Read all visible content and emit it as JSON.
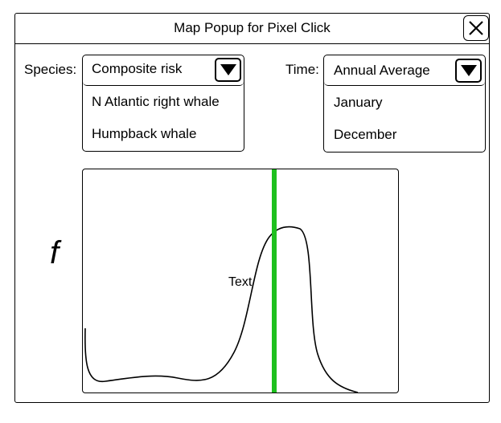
{
  "dialog": {
    "title": "Map Popup for Pixel Click",
    "close_icon": "close-icon"
  },
  "species": {
    "label": "Species:",
    "selected": "Composite risk",
    "options": [
      "N Atlantic right whale",
      "Humpback whale"
    ],
    "arrow_icon": "triangle-down-icon"
  },
  "time": {
    "label": "Time:",
    "selected": "Annual Average",
    "options": [
      "January",
      "December"
    ],
    "arrow_icon": "triangle-down-icon"
  },
  "plot": {
    "y_label": "f",
    "annotation": "Text",
    "curve_color": "#000000",
    "marker_color": "#1ec01e"
  }
}
